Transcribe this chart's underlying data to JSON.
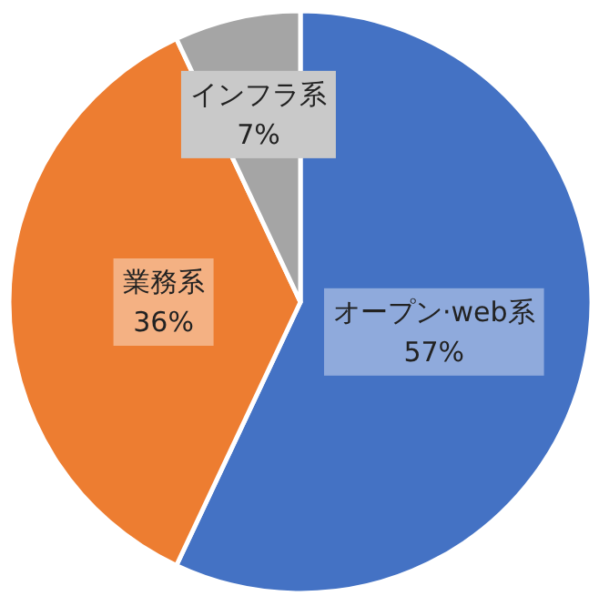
{
  "chart_data": {
    "type": "pie",
    "categories": [
      "オープン·web系",
      "業務系",
      "インフラ系"
    ],
    "values": [
      57,
      36,
      7
    ],
    "value_labels": [
      "57%",
      "36%",
      "7%"
    ],
    "colors": [
      "#4472c4",
      "#ed7d31",
      "#a5a5a5"
    ]
  }
}
